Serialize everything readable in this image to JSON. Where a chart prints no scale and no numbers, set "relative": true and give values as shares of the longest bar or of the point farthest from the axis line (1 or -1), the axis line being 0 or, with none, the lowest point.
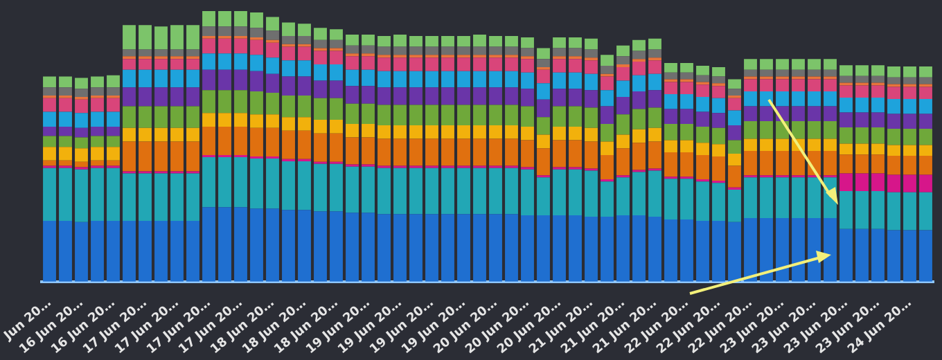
{
  "chart_data": {
    "type": "bar",
    "stacked": true,
    "relative": true,
    "legend": false,
    "categories": [
      "Jun 20…",
      null,
      "16 Jun 20…",
      null,
      "16 Jun 20…",
      null,
      "17 Jun 20…",
      null,
      "17 Jun 20…",
      null,
      "17 Jun 20…",
      null,
      "17 Jun 20…",
      null,
      "18 Jun 20…",
      null,
      "18 Jun 20…",
      null,
      "18 Jun 20…",
      null,
      "19 Jun 20…",
      null,
      "19 Jun 20…",
      null,
      "19 Jun 20…",
      null,
      "19 Jun 20…",
      null,
      "20 Jun 20…",
      null,
      "20 Jun 20…",
      null,
      "20 Jun 20…",
      null,
      "21 Jun 20…",
      null,
      "21 Jun 20…",
      null,
      "21 Jun 20…",
      null,
      "22 Jun 20…",
      null,
      "22 Jun 20…",
      null,
      "22 Jun 20…",
      null,
      "23 Jun 20…",
      null,
      "23 Jun 20…",
      null,
      "23 Jun 20…",
      null,
      "23 Jun 20…",
      null,
      "24 Jun 20…",
      null
    ],
    "series": [
      {
        "color": "#1f6fd0",
        "values": [
          0.225,
          0.225,
          0.22,
          0.225,
          0.225,
          0.225,
          0.225,
          0.225,
          0.225,
          0.225,
          0.275,
          0.275,
          0.275,
          0.27,
          0.27,
          0.265,
          0.265,
          0.26,
          0.26,
          0.255,
          0.255,
          0.25,
          0.25,
          0.25,
          0.25,
          0.25,
          0.25,
          0.25,
          0.25,
          0.25,
          0.245,
          0.245,
          0.245,
          0.245,
          0.24,
          0.24,
          0.245,
          0.245,
          0.24,
          0.23,
          0.23,
          0.225,
          0.225,
          0.22,
          0.235,
          0.235,
          0.235,
          0.235,
          0.235,
          0.235,
          0.195,
          0.195,
          0.195,
          0.19,
          0.19,
          0.19
        ]
      },
      {
        "color": "#22a7b5",
        "values": [
          0.195,
          0.195,
          0.195,
          0.195,
          0.195,
          0.175,
          0.175,
          0.175,
          0.175,
          0.175,
          0.185,
          0.185,
          0.185,
          0.185,
          0.185,
          0.18,
          0.18,
          0.175,
          0.175,
          0.17,
          0.17,
          0.17,
          0.17,
          0.17,
          0.17,
          0.17,
          0.17,
          0.17,
          0.17,
          0.17,
          0.17,
          0.14,
          0.17,
          0.17,
          0.17,
          0.13,
          0.14,
          0.16,
          0.17,
          0.15,
          0.15,
          0.145,
          0.14,
          0.12,
          0.15,
          0.15,
          0.15,
          0.15,
          0.15,
          0.15,
          0.14,
          0.14,
          0.14,
          0.14,
          0.14,
          0.14
        ]
      },
      {
        "color": "#d6168a",
        "values": [
          0.008,
          0.008,
          0.008,
          0.008,
          0.008,
          0.008,
          0.008,
          0.008,
          0.008,
          0.008,
          0.008,
          0.008,
          0.008,
          0.008,
          0.008,
          0.008,
          0.008,
          0.008,
          0.008,
          0.008,
          0.008,
          0.008,
          0.008,
          0.008,
          0.008,
          0.008,
          0.008,
          0.008,
          0.008,
          0.008,
          0.008,
          0.008,
          0.008,
          0.008,
          0.008,
          0.008,
          0.008,
          0.008,
          0.008,
          0.008,
          0.008,
          0.008,
          0.008,
          0.008,
          0.008,
          0.008,
          0.008,
          0.008,
          0.008,
          0.008,
          0.065,
          0.065,
          0.065,
          0.065,
          0.065,
          0.065
        ]
      },
      {
        "color": "#e0700f",
        "values": [
          0.02,
          0.02,
          0.02,
          0.02,
          0.02,
          0.11,
          0.11,
          0.11,
          0.11,
          0.11,
          0.105,
          0.105,
          0.105,
          0.105,
          0.105,
          0.105,
          0.105,
          0.105,
          0.105,
          0.1,
          0.1,
          0.1,
          0.1,
          0.1,
          0.1,
          0.1,
          0.1,
          0.1,
          0.1,
          0.1,
          0.1,
          0.1,
          0.1,
          0.1,
          0.1,
          0.09,
          0.1,
          0.1,
          0.1,
          0.09,
          0.09,
          0.09,
          0.09,
          0.08,
          0.09,
          0.09,
          0.09,
          0.09,
          0.09,
          0.09,
          0.07,
          0.07,
          0.07,
          0.07,
          0.07,
          0.07
        ]
      },
      {
        "color": "#f2b10c",
        "values": [
          0.05,
          0.05,
          0.05,
          0.05,
          0.05,
          0.05,
          0.05,
          0.05,
          0.05,
          0.05,
          0.05,
          0.05,
          0.05,
          0.05,
          0.05,
          0.05,
          0.05,
          0.05,
          0.05,
          0.05,
          0.05,
          0.05,
          0.05,
          0.05,
          0.05,
          0.05,
          0.05,
          0.05,
          0.05,
          0.05,
          0.05,
          0.05,
          0.05,
          0.05,
          0.05,
          0.05,
          0.05,
          0.05,
          0.05,
          0.045,
          0.045,
          0.045,
          0.045,
          0.045,
          0.045,
          0.045,
          0.045,
          0.045,
          0.045,
          0.045,
          0.04,
          0.04,
          0.04,
          0.04,
          0.04,
          0.04
        ]
      },
      {
        "color": "#6fa83a",
        "values": [
          0.04,
          0.04,
          0.04,
          0.04,
          0.04,
          0.08,
          0.08,
          0.08,
          0.08,
          0.08,
          0.085,
          0.085,
          0.085,
          0.085,
          0.08,
          0.08,
          0.08,
          0.08,
          0.08,
          0.075,
          0.075,
          0.075,
          0.075,
          0.075,
          0.075,
          0.075,
          0.075,
          0.075,
          0.075,
          0.075,
          0.075,
          0.065,
          0.075,
          0.075,
          0.075,
          0.065,
          0.075,
          0.075,
          0.075,
          0.06,
          0.06,
          0.06,
          0.06,
          0.05,
          0.065,
          0.065,
          0.065,
          0.065,
          0.065,
          0.065,
          0.06,
          0.06,
          0.06,
          0.06,
          0.06,
          0.06
        ]
      },
      {
        "color": "#6a35a8",
        "values": [
          0.035,
          0.035,
          0.035,
          0.035,
          0.035,
          0.07,
          0.07,
          0.07,
          0.07,
          0.07,
          0.075,
          0.075,
          0.075,
          0.075,
          0.07,
          0.07,
          0.07,
          0.065,
          0.065,
          0.065,
          0.065,
          0.065,
          0.065,
          0.065,
          0.065,
          0.065,
          0.065,
          0.065,
          0.065,
          0.065,
          0.065,
          0.065,
          0.065,
          0.065,
          0.065,
          0.065,
          0.065,
          0.065,
          0.065,
          0.055,
          0.055,
          0.055,
          0.055,
          0.055,
          0.055,
          0.055,
          0.055,
          0.055,
          0.055,
          0.055,
          0.055,
          0.055,
          0.055,
          0.055,
          0.055,
          0.055
        ]
      },
      {
        "color": "#1ea3dc",
        "values": [
          0.055,
          0.055,
          0.055,
          0.055,
          0.055,
          0.065,
          0.065,
          0.065,
          0.065,
          0.065,
          0.06,
          0.06,
          0.06,
          0.06,
          0.06,
          0.06,
          0.06,
          0.06,
          0.06,
          0.06,
          0.06,
          0.06,
          0.06,
          0.06,
          0.06,
          0.06,
          0.06,
          0.06,
          0.06,
          0.06,
          0.06,
          0.06,
          0.06,
          0.06,
          0.06,
          0.06,
          0.06,
          0.06,
          0.06,
          0.055,
          0.055,
          0.055,
          0.055,
          0.055,
          0.055,
          0.055,
          0.055,
          0.055,
          0.055,
          0.055,
          0.055,
          0.055,
          0.055,
          0.055,
          0.055,
          0.055
        ]
      },
      {
        "color": "#d9457a",
        "values": [
          0.05,
          0.05,
          0.05,
          0.05,
          0.05,
          0.04,
          0.04,
          0.04,
          0.04,
          0.04,
          0.055,
          0.055,
          0.055,
          0.055,
          0.055,
          0.05,
          0.05,
          0.05,
          0.05,
          0.05,
          0.05,
          0.05,
          0.05,
          0.05,
          0.05,
          0.05,
          0.05,
          0.05,
          0.05,
          0.05,
          0.05,
          0.05,
          0.05,
          0.05,
          0.05,
          0.05,
          0.05,
          0.05,
          0.05,
          0.045,
          0.045,
          0.045,
          0.045,
          0.045,
          0.045,
          0.045,
          0.045,
          0.045,
          0.045,
          0.045,
          0.045,
          0.045,
          0.045,
          0.045,
          0.045,
          0.045
        ]
      },
      {
        "color": "#e8743b",
        "values": [
          0.01,
          0.01,
          0.01,
          0.01,
          0.01,
          0.01,
          0.01,
          0.01,
          0.01,
          0.01,
          0.01,
          0.01,
          0.01,
          0.01,
          0.01,
          0.01,
          0.01,
          0.01,
          0.01,
          0.01,
          0.01,
          0.01,
          0.01,
          0.01,
          0.01,
          0.01,
          0.01,
          0.01,
          0.01,
          0.01,
          0.01,
          0.01,
          0.01,
          0.01,
          0.01,
          0.01,
          0.01,
          0.01,
          0.01,
          0.01,
          0.01,
          0.01,
          0.01,
          0.01,
          0.01,
          0.01,
          0.01,
          0.01,
          0.01,
          0.01,
          0.01,
          0.01,
          0.01,
          0.01,
          0.01,
          0.01
        ]
      },
      {
        "color": "#6f6f6f",
        "values": [
          0.03,
          0.03,
          0.03,
          0.03,
          0.03,
          0.025,
          0.025,
          0.025,
          0.025,
          0.025,
          0.035,
          0.035,
          0.035,
          0.035,
          0.035,
          0.03,
          0.03,
          0.03,
          0.03,
          0.03,
          0.03,
          0.03,
          0.03,
          0.03,
          0.03,
          0.03,
          0.03,
          0.03,
          0.03,
          0.03,
          0.03,
          0.03,
          0.03,
          0.03,
          0.03,
          0.03,
          0.03,
          0.03,
          0.03,
          0.025,
          0.025,
          0.025,
          0.025,
          0.025,
          0.025,
          0.025,
          0.025,
          0.025,
          0.025,
          0.025,
          0.025,
          0.025,
          0.025,
          0.025,
          0.025,
          0.025
        ]
      },
      {
        "color": "#7cc46a",
        "values": [
          0.04,
          0.04,
          0.04,
          0.04,
          0.045,
          0.09,
          0.09,
          0.085,
          0.09,
          0.09,
          0.057,
          0.057,
          0.057,
          0.057,
          0.05,
          0.05,
          0.045,
          0.045,
          0.04,
          0.04,
          0.04,
          0.04,
          0.045,
          0.04,
          0.04,
          0.04,
          0.04,
          0.045,
          0.04,
          0.04,
          0.04,
          0.04,
          0.04,
          0.04,
          0.04,
          0.04,
          0.04,
          0.04,
          0.04,
          0.035,
          0.035,
          0.035,
          0.035,
          0.035,
          0.04,
          0.04,
          0.04,
          0.04,
          0.04,
          0.04,
          0.04,
          0.04,
          0.04,
          0.04,
          0.04,
          0.04
        ]
      }
    ]
  }
}
